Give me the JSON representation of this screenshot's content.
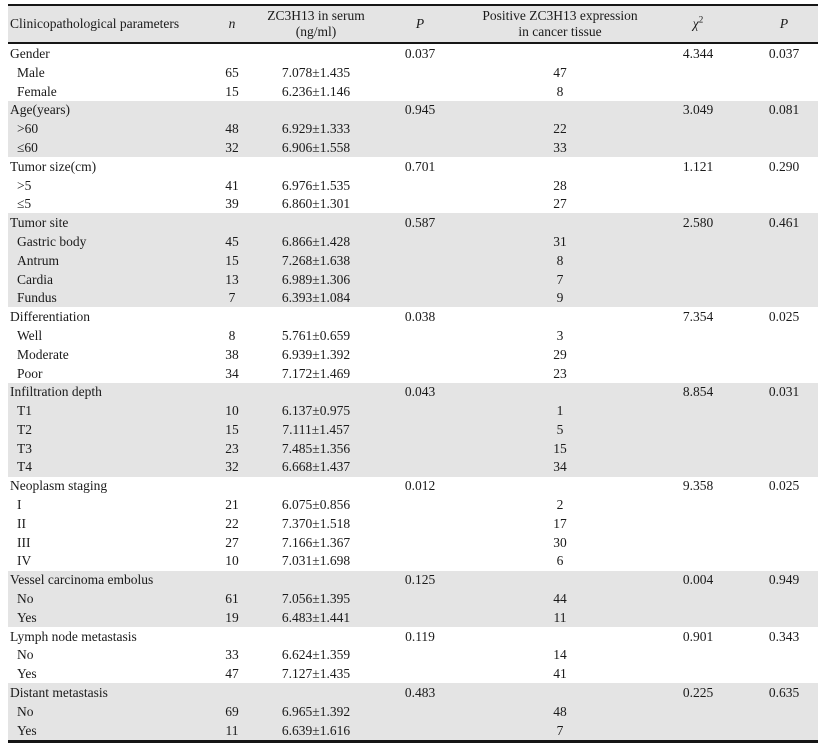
{
  "table": {
    "columns": {
      "parameters": "Clinicopathological parameters",
      "n": "n",
      "serum_line1": "ZC3H13 in serum",
      "serum_line2": "(ng/ml)",
      "p_serum": "P",
      "expression_line1": "Positive ZC3H13 expression",
      "expression_line2": "in cancer tissue",
      "chi_base": "χ",
      "chi_sup": "2",
      "p_tissue": "P"
    },
    "groups": [
      {
        "label": "Gender",
        "p_serum": "0.037",
        "chi2": "4.344",
        "p_tissue": "0.037",
        "rows": [
          {
            "label": "Male",
            "n": "65",
            "serum": "7.078±1.435",
            "positive": "47"
          },
          {
            "label": "Female",
            "n": "15",
            "serum": "6.236±1.146",
            "positive": "8"
          }
        ]
      },
      {
        "label": "Age(years)",
        "p_serum": "0.945",
        "chi2": "3.049",
        "p_tissue": "0.081",
        "rows": [
          {
            "label": ">60",
            "n": "48",
            "serum": "6.929±1.333",
            "positive": "22"
          },
          {
            "label": "≤60",
            "n": "32",
            "serum": "6.906±1.558",
            "positive": "33"
          }
        ]
      },
      {
        "label": "Tumor size(cm)",
        "p_serum": "0.701",
        "chi2": "1.121",
        "p_tissue": "0.290",
        "rows": [
          {
            "label": ">5",
            "n": "41",
            "serum": "6.976±1.535",
            "positive": "28"
          },
          {
            "label": "≤5",
            "n": "39",
            "serum": "6.860±1.301",
            "positive": "27"
          }
        ]
      },
      {
        "label": "Tumor site",
        "p_serum": "0.587",
        "chi2": "2.580",
        "p_tissue": "0.461",
        "rows": [
          {
            "label": "Gastric body",
            "n": "45",
            "serum": "6.866±1.428",
            "positive": "31"
          },
          {
            "label": "Antrum",
            "n": "15",
            "serum": "7.268±1.638",
            "positive": "8"
          },
          {
            "label": "Cardia",
            "n": "13",
            "serum": "6.989±1.306",
            "positive": "7"
          },
          {
            "label": "Fundus",
            "n": "7",
            "serum": "6.393±1.084",
            "positive": "9"
          }
        ]
      },
      {
        "label": "Differentiation",
        "p_serum": "0.038",
        "chi2": "7.354",
        "p_tissue": "0.025",
        "rows": [
          {
            "label": "Well",
            "n": "8",
            "serum": "5.761±0.659",
            "positive": "3"
          },
          {
            "label": "Moderate",
            "n": "38",
            "serum": "6.939±1.392",
            "positive": "29"
          },
          {
            "label": "Poor",
            "n": "34",
            "serum": "7.172±1.469",
            "positive": "23"
          }
        ]
      },
      {
        "label": "Infiltration depth",
        "p_serum": "0.043",
        "chi2": "8.854",
        "p_tissue": "0.031",
        "rows": [
          {
            "label": "T1",
            "n": "10",
            "serum": "6.137±0.975",
            "positive": "1"
          },
          {
            "label": "T2",
            "n": "15",
            "serum": "7.111±1.457",
            "positive": "5"
          },
          {
            "label": "T3",
            "n": "23",
            "serum": "7.485±1.356",
            "positive": "15"
          },
          {
            "label": "T4",
            "n": "32",
            "serum": "6.668±1.437",
            "positive": "34"
          }
        ]
      },
      {
        "label": "Neoplasm staging",
        "p_serum": "0.012",
        "chi2": "9.358",
        "p_tissue": "0.025",
        "rows": [
          {
            "label": "I",
            "n": "21",
            "serum": "6.075±0.856",
            "positive": "2"
          },
          {
            "label": "II",
            "n": "22",
            "serum": "7.370±1.518",
            "positive": "17"
          },
          {
            "label": "III",
            "n": "27",
            "serum": "7.166±1.367",
            "positive": "30"
          },
          {
            "label": "IV",
            "n": "10",
            "serum": "7.031±1.698",
            "positive": "6"
          }
        ]
      },
      {
        "label": "Vessel carcinoma embolus",
        "p_serum": "0.125",
        "chi2": "0.004",
        "p_tissue": "0.949",
        "rows": [
          {
            "label": "No",
            "n": "61",
            "serum": "7.056±1.395",
            "positive": "44"
          },
          {
            "label": "Yes",
            "n": "19",
            "serum": "6.483±1.441",
            "positive": "11"
          }
        ]
      },
      {
        "label": "Lymph node metastasis",
        "p_serum": "0.119",
        "chi2": "0.901",
        "p_tissue": "0.343",
        "rows": [
          {
            "label": "No",
            "n": "33",
            "serum": "6.624±1.359",
            "positive": "14"
          },
          {
            "label": "Yes",
            "n": "47",
            "serum": "7.127±1.435",
            "positive": "41"
          }
        ]
      },
      {
        "label": "Distant metastasis",
        "p_serum": "0.483",
        "chi2": "0.225",
        "p_tissue": "0.635",
        "rows": [
          {
            "label": "No",
            "n": "69",
            "serum": "6.965±1.392",
            "positive": "48"
          },
          {
            "label": "Yes",
            "n": "11",
            "serum": "6.639±1.616",
            "positive": "7"
          }
        ]
      }
    ]
  },
  "colors": {
    "band": "#e4e4e4",
    "border": "#161616",
    "text": "#1a1a1a"
  }
}
